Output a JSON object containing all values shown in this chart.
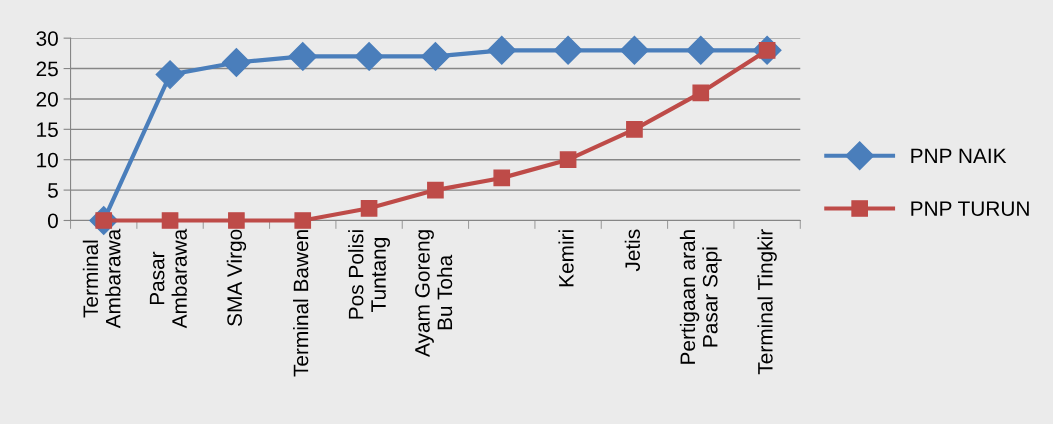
{
  "chart_data": {
    "type": "line",
    "categories": [
      "Terminal\nAmbarawa",
      "Pasar\nAmbarawa",
      "SMA Virgo",
      "Terminal Bawen",
      "Pos Polisi\nTuntang",
      "Ayam Goreng\nBu Toha",
      null,
      "Kemiri",
      "Jetis",
      "Pertigaan arah\nPasar Sapi",
      "Terminal Tingkir"
    ],
    "series": [
      {
        "name": "PNP NAIK",
        "color": "#4a7ebb",
        "marker": "diamond",
        "values": [
          0,
          24,
          26,
          27,
          27,
          27,
          28,
          28,
          28,
          28,
          28
        ]
      },
      {
        "name": "PNP TURUN",
        "color": "#be4b48",
        "marker": "square",
        "values": [
          0,
          0,
          0,
          0,
          2,
          5,
          7,
          10,
          15,
          21,
          28
        ]
      }
    ],
    "ylim": [
      0,
      30
    ],
    "yticks": [
      0,
      5,
      10,
      15,
      20,
      25,
      30
    ],
    "grid": "y",
    "legend": "right",
    "line_style": "solid"
  }
}
